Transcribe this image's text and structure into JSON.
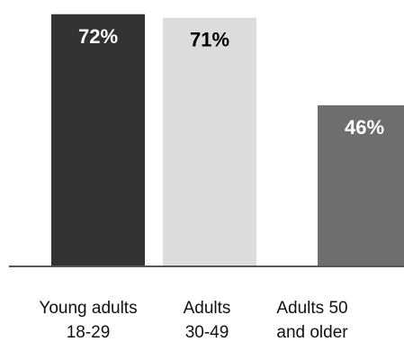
{
  "chart_data": {
    "type": "bar",
    "categories": [
      [
        "Young adults",
        "18-29"
      ],
      [
        "Adults",
        "30-49"
      ],
      [
        "Adults 50",
        "and older"
      ]
    ],
    "values": [
      72,
      71,
      46
    ],
    "data_labels": [
      "72%",
      "71%",
      "46%"
    ],
    "bar_colors": [
      "#333333",
      "#dcdcdc",
      "#6e6e6e"
    ],
    "label_colors": [
      "#ffffff",
      "#000000",
      "#ffffff"
    ],
    "ylim": [
      0,
      74
    ],
    "grid": false,
    "legend": "none"
  }
}
